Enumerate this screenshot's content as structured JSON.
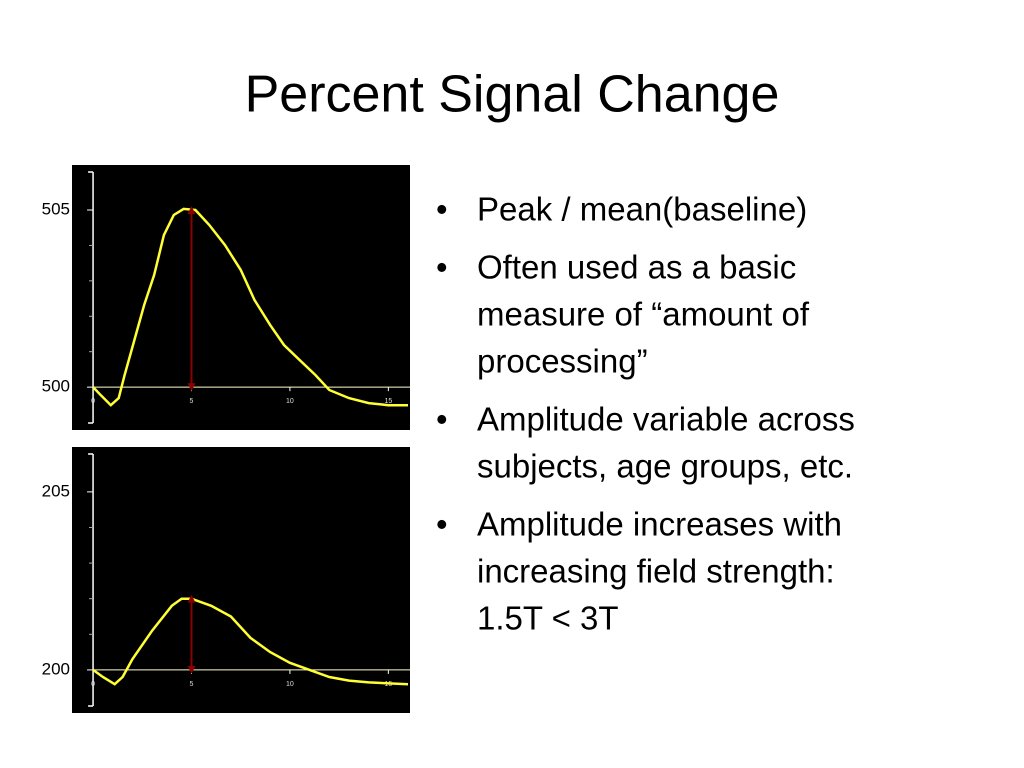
{
  "title": "Percent Signal Change",
  "bullets": [
    [
      "Peak / mean(baseline)"
    ],
    [
      "Often used as a basic",
      "measure of “amount of",
      "processing”"
    ],
    [
      "Amplitude variable across",
      "subjects, age groups, etc."
    ],
    [
      "Amplitude increases with",
      "increasing field strength:",
      "1.5T < 3T"
    ]
  ],
  "chart_data": [
    {
      "type": "line",
      "color": "#ffff33",
      "x": [
        0,
        0.4,
        0.9,
        1.3,
        1.6,
        2.1,
        2.6,
        3.1,
        3.6,
        4.1,
        4.6,
        5.2,
        5.9,
        6.7,
        7.5,
        8.2,
        9,
        9.7,
        10.5,
        11.3,
        12,
        13,
        14,
        15,
        16
      ],
      "values": [
        500,
        499.77,
        499.49,
        499.69,
        500.34,
        501.33,
        502.32,
        503.16,
        504.29,
        504.86,
        505.03,
        505,
        504.58,
        504.01,
        503.31,
        502.46,
        501.75,
        501.19,
        500.76,
        500.34,
        499.92,
        499.69,
        499.55,
        499.49,
        499.49
      ],
      "xlim": [
        -1.07,
        16.1
      ],
      "xticks": [
        0,
        5,
        10,
        15
      ],
      "ylim": [
        498.79,
        506.27
      ],
      "yticks": [
        500,
        505
      ],
      "y_minor_ticks": [
        501,
        502,
        503,
        504
      ],
      "arrow": {
        "x": 5,
        "from": 500,
        "to": 505,
        "color": "#8b0000"
      }
    },
    {
      "type": "line",
      "color": "#ffff33",
      "x": [
        0,
        0.5,
        1.1,
        1.5,
        2,
        3,
        4,
        4.5,
        5,
        6,
        7,
        8,
        9,
        10,
        11,
        12,
        13,
        14,
        16
      ],
      "values": [
        200,
        199.8,
        199.6,
        199.8,
        200.3,
        201.1,
        201.8,
        202,
        202,
        201.8,
        201.5,
        200.9,
        200.5,
        200.2,
        200,
        199.8,
        199.7,
        199.65,
        199.6
      ],
      "xlim": [
        -1.07,
        16.1
      ],
      "xticks": [
        0,
        5,
        10,
        15
      ],
      "ylim": [
        198.79,
        206.26
      ],
      "yticks": [
        200,
        205
      ],
      "y_minor_ticks": [
        201,
        202,
        203,
        204
      ],
      "arrow": {
        "x": 5,
        "from": 200,
        "to": 202,
        "color": "#8b0000"
      }
    }
  ]
}
